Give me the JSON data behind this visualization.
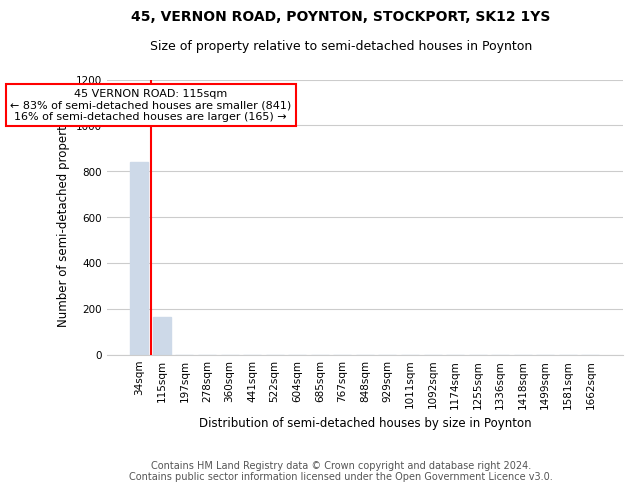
{
  "title": "45, VERNON ROAD, POYNTON, STOCKPORT, SK12 1YS",
  "subtitle": "Size of property relative to semi-detached houses in Poynton",
  "xlabel": "Distribution of semi-detached houses by size in Poynton",
  "ylabel": "Number of semi-detached properties",
  "annotation_title": "45 VERNON ROAD: 115sqm",
  "annotation_line1": "← 83% of semi-detached houses are smaller (841)",
  "annotation_line2": "16% of semi-detached houses are larger (165) →",
  "footer_line1": "Contains HM Land Registry data © Crown copyright and database right 2024.",
  "footer_line2": "Contains public sector information licensed under the Open Government Licence v3.0.",
  "categories": [
    "34sqm",
    "115sqm",
    "197sqm",
    "278sqm",
    "360sqm",
    "441sqm",
    "522sqm",
    "604sqm",
    "685sqm",
    "767sqm",
    "848sqm",
    "929sqm",
    "1011sqm",
    "1092sqm",
    "1174sqm",
    "1255sqm",
    "1336sqm",
    "1418sqm",
    "1499sqm",
    "1581sqm",
    "1662sqm"
  ],
  "values": [
    841,
    165,
    0,
    0,
    0,
    0,
    0,
    0,
    0,
    0,
    0,
    0,
    0,
    0,
    0,
    0,
    0,
    0,
    0,
    0,
    0
  ],
  "bar_color": "#cdd9e8",
  "vline_x": 0.5,
  "vline_color": "red",
  "ylim": [
    0,
    1200
  ],
  "yticks": [
    0,
    200,
    400,
    600,
    800,
    1000,
    1200
  ],
  "annotation_box_color": "white",
  "annotation_box_edge_color": "red",
  "grid_color": "#cccccc",
  "background_color": "white",
  "title_fontsize": 10,
  "subtitle_fontsize": 9,
  "axis_label_fontsize": 8.5,
  "tick_fontsize": 7.5,
  "footer_fontsize": 7,
  "annotation_fontsize": 8
}
